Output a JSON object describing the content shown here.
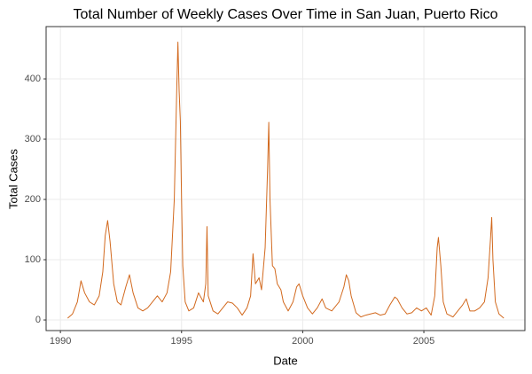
{
  "chart_data": {
    "type": "line",
    "title": "Total Number of Weekly Cases Over Time in San Juan, Puerto Rico",
    "x_label": "Date",
    "y_label": "Total Cases",
    "x": [
      1990.3,
      1990.5,
      1990.7,
      1990.85,
      1991.0,
      1991.2,
      1991.4,
      1991.6,
      1991.75,
      1991.85,
      1991.95,
      1992.05,
      1992.2,
      1992.35,
      1992.5,
      1992.7,
      1992.85,
      1993.0,
      1993.2,
      1993.4,
      1993.6,
      1993.8,
      1994.0,
      1994.2,
      1994.4,
      1994.55,
      1994.7,
      1994.8,
      1994.85,
      1994.9,
      1994.95,
      1995.0,
      1995.05,
      1995.15,
      1995.3,
      1995.5,
      1995.7,
      1995.9,
      1996.0,
      1996.05,
      1996.1,
      1996.3,
      1996.5,
      1996.7,
      1996.9,
      1997.1,
      1997.3,
      1997.5,
      1997.7,
      1997.85,
      1997.95,
      1998.05,
      1998.2,
      1998.3,
      1998.45,
      1998.55,
      1998.6,
      1998.65,
      1998.75,
      1998.85,
      1998.95,
      1999.1,
      1999.2,
      1999.4,
      1999.6,
      1999.75,
      1999.85,
      2000.0,
      2000.2,
      2000.4,
      2000.6,
      2000.8,
      2000.95,
      2001.2,
      2001.5,
      2001.7,
      2001.8,
      2001.9,
      2002.0,
      2002.2,
      2002.4,
      2002.6,
      2002.8,
      2003.0,
      2003.2,
      2003.4,
      2003.6,
      2003.8,
      2003.9,
      2004.1,
      2004.3,
      2004.5,
      2004.7,
      2004.9,
      2005.1,
      2005.3,
      2005.45,
      2005.55,
      2005.6,
      2005.7,
      2005.8,
      2005.95,
      2006.2,
      2006.4,
      2006.6,
      2006.75,
      2006.9,
      2007.1,
      2007.3,
      2007.5,
      2007.65,
      2007.75,
      2007.8,
      2007.85,
      2007.95,
      2008.1,
      2008.3
    ],
    "values": [
      3,
      10,
      30,
      65,
      45,
      30,
      25,
      40,
      80,
      140,
      165,
      130,
      60,
      30,
      25,
      55,
      75,
      45,
      20,
      15,
      20,
      30,
      40,
      30,
      45,
      80,
      200,
      380,
      461,
      380,
      330,
      200,
      90,
      30,
      15,
      20,
      45,
      30,
      60,
      155,
      40,
      15,
      10,
      20,
      30,
      28,
      20,
      8,
      20,
      40,
      110,
      60,
      70,
      50,
      120,
      250,
      328,
      200,
      90,
      85,
      60,
      50,
      30,
      15,
      30,
      55,
      60,
      40,
      20,
      10,
      20,
      35,
      20,
      15,
      30,
      55,
      75,
      65,
      40,
      12,
      5,
      8,
      10,
      12,
      8,
      10,
      25,
      38,
      35,
      20,
      10,
      12,
      20,
      15,
      20,
      8,
      40,
      120,
      137,
      90,
      30,
      10,
      5,
      15,
      25,
      35,
      15,
      15,
      20,
      30,
      70,
      135,
      170,
      100,
      30,
      10,
      3
    ],
    "color": "#d2691e",
    "xlim": [
      1989.41,
      2009.17
    ],
    "xticks": [
      1990,
      1995,
      2000,
      2005
    ],
    "ylim": [
      -17.6,
      486.8
    ],
    "yticks": [
      0,
      100,
      200,
      300,
      400
    ],
    "grid": true
  }
}
